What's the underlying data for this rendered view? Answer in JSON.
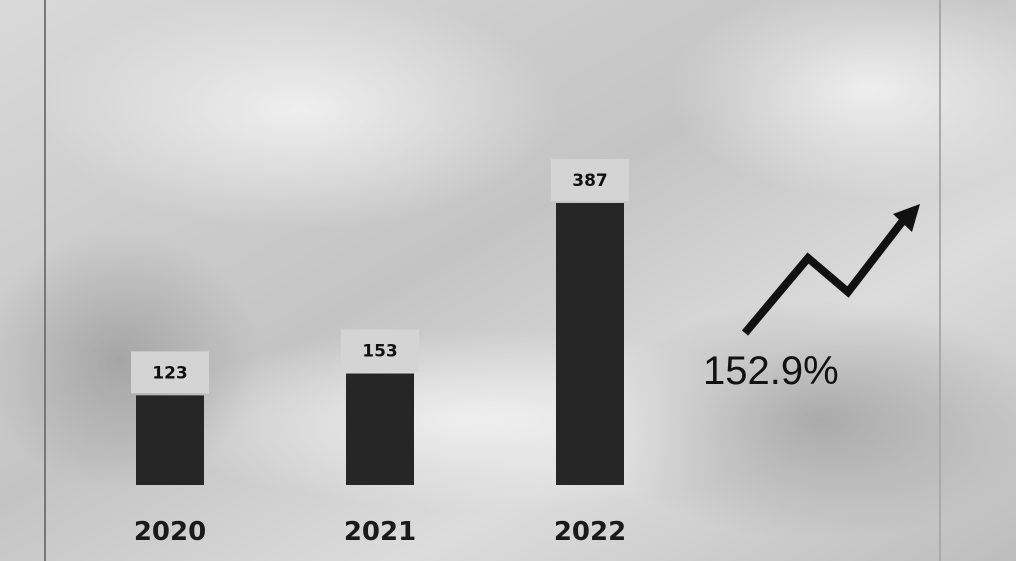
{
  "chart_data": {
    "type": "bar",
    "categories": [
      "2020",
      "2021",
      "2022"
    ],
    "values": [
      123,
      153,
      387
    ],
    "color": "#262626",
    "annotation": "152.9%"
  }
}
